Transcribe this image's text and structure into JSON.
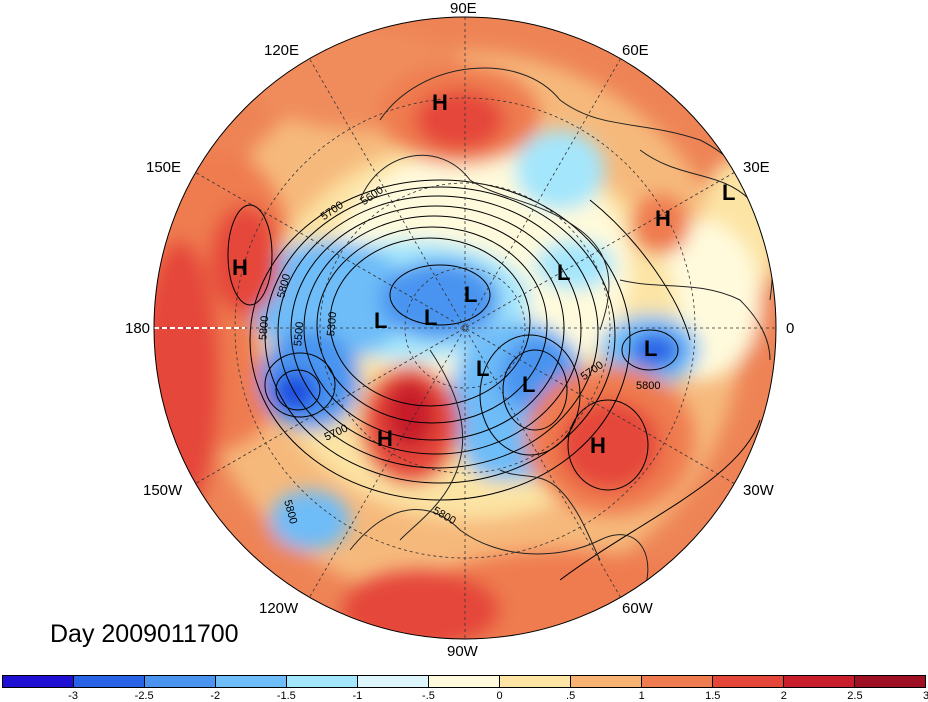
{
  "title": "Day 2009011700",
  "longitude_labels": [
    "90E",
    "60E",
    "30E",
    "0",
    "30W",
    "60W",
    "90W",
    "120W",
    "150W",
    "180",
    "150E",
    "120E"
  ],
  "contour_labels": [
    "5700",
    "5600",
    "5800",
    "5800",
    "5500",
    "5300",
    "5700",
    "5800",
    "5700",
    "5800",
    "5800"
  ],
  "pressure_centers": [
    "H",
    "H",
    "H",
    "H",
    "H",
    "L",
    "L",
    "L",
    "L",
    "L",
    "L",
    "L",
    "L"
  ],
  "colorbar": {
    "colors": [
      "#1e0fd2",
      "#2863e6",
      "#4a94f0",
      "#6ebcf8",
      "#a4e6fc",
      "#dcf6fc",
      "#fffadc",
      "#fce4a4",
      "#f7b274",
      "#ef7c50",
      "#e5463a",
      "#c81e2c",
      "#a01024"
    ],
    "ticks": [
      "-3",
      "-2.5",
      "-2",
      "-1.5",
      "-1",
      "-.5",
      "0",
      ".5",
      "1",
      "1.5",
      "2",
      "2.5",
      "3"
    ]
  }
}
